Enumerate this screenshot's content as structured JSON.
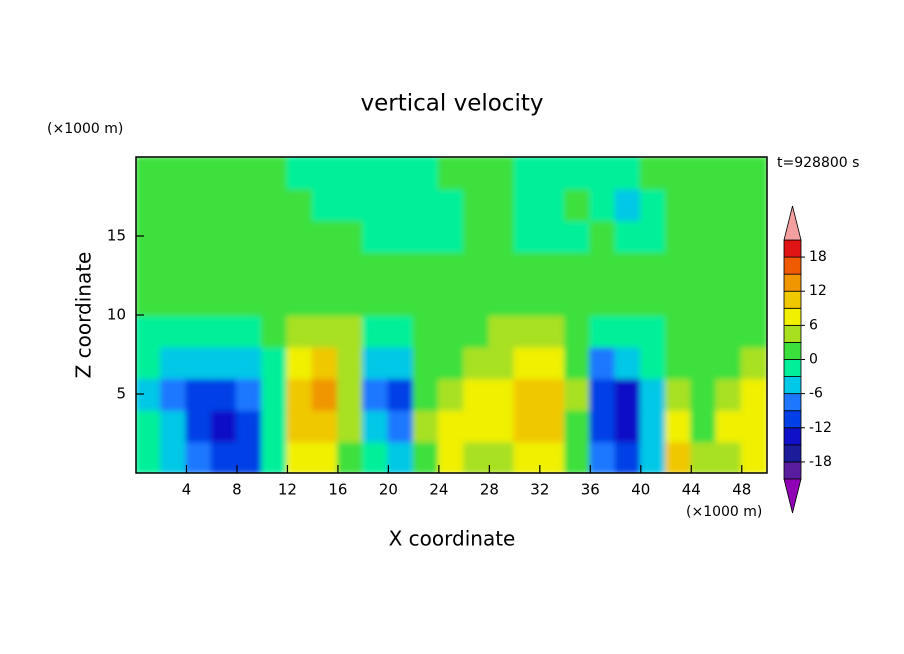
{
  "chart_data": {
    "type": "contour",
    "title": "vertical velocity",
    "x_label": "X coordinate",
    "y_label": "Z coordinate",
    "x_unit": "(×1000 m)",
    "y_unit": "(×1000 m)",
    "time_label": "t=928800 s",
    "xlim": [
      0,
      50
    ],
    "ylim": [
      0,
      20
    ],
    "xticks": [
      4,
      8,
      12,
      16,
      20,
      24,
      28,
      32,
      36,
      40,
      44,
      48
    ],
    "yticks": [
      5,
      10,
      15
    ],
    "x": [
      1,
      3,
      5,
      7,
      9,
      11,
      13,
      15,
      17,
      19,
      21,
      23,
      25,
      27,
      29,
      31,
      33,
      35,
      37,
      39,
      41,
      43,
      45,
      47,
      49
    ],
    "y": [
      1,
      3,
      5,
      7,
      9,
      11,
      13,
      15,
      17,
      19
    ],
    "z": [
      [
        -2,
        -4,
        -8,
        -12,
        -10,
        -2,
        8,
        8,
        2,
        -2,
        -4,
        1,
        7,
        5,
        4,
        8,
        7,
        1,
        -7,
        -10,
        -4,
        9,
        3,
        4,
        6
      ],
      [
        -3,
        -6,
        -11,
        -14,
        -12,
        -3,
        10,
        11,
        3,
        -5,
        -8,
        3,
        8,
        7,
        6,
        10,
        9,
        2,
        -10,
        -14,
        -6,
        7,
        2,
        6,
        7
      ],
      [
        -4,
        -7,
        -10,
        -11,
        -9,
        -2,
        11,
        12,
        4,
        -8,
        -11,
        1,
        5,
        6,
        7,
        11,
        9,
        3,
        -12,
        -13,
        -5,
        3,
        1,
        4,
        6
      ],
      [
        -3,
        -5,
        -5,
        -5,
        -6,
        -1,
        8,
        9,
        4,
        -4,
        -6,
        0,
        2,
        3,
        5,
        8,
        6,
        2,
        -7,
        -6,
        -3,
        0,
        1,
        2,
        3
      ],
      [
        -1,
        -2,
        -2,
        -1,
        -1,
        1,
        4,
        5,
        3,
        -1,
        -2,
        1,
        1,
        2,
        3,
        4,
        3,
        1,
        -3,
        -3,
        -2,
        1,
        1,
        0,
        1
      ],
      [
        1,
        1,
        0,
        0,
        1,
        2,
        2,
        2,
        1,
        1,
        0,
        1,
        2,
        2,
        2,
        2,
        2,
        1,
        0,
        0,
        1,
        1,
        2,
        1,
        1
      ],
      [
        1,
        1,
        1,
        2,
        1,
        1,
        1,
        2,
        1,
        1,
        1,
        1,
        1,
        1,
        0,
        0,
        1,
        1,
        1,
        1,
        1,
        2,
        1,
        1,
        1
      ],
      [
        1,
        1,
        1,
        1,
        1,
        1,
        1,
        1,
        1,
        -1,
        -1,
        -1,
        -1,
        1,
        1,
        -1,
        -1,
        -1,
        1,
        -1,
        -1,
        1,
        1,
        1,
        1
      ],
      [
        1,
        2,
        1,
        1,
        1,
        1,
        1,
        -1,
        -1,
        -1,
        -1,
        -1,
        -1,
        1,
        1,
        -1,
        -1,
        1,
        -1,
        -4,
        -1,
        1,
        1,
        1,
        1
      ],
      [
        1,
        1,
        1,
        1,
        1,
        1,
        -1,
        -1,
        -1,
        -1,
        -1,
        -1,
        1,
        1,
        1,
        -1,
        -1,
        -1,
        -1,
        -1,
        1,
        1,
        1,
        1,
        1
      ]
    ],
    "colorbar": {
      "levels": [
        -21,
        -18,
        -15,
        -12,
        -9,
        -6,
        -3,
        0,
        3,
        6,
        9,
        12,
        15,
        18,
        21
      ],
      "colors": [
        "#5a1da0",
        "#1c1c9a",
        "#1010c8",
        "#0040e6",
        "#1e78ff",
        "#00c8e6",
        "#00f09a",
        "#3ce03c",
        "#a8e020",
        "#f0f000",
        "#f0c800",
        "#f09600",
        "#f05a00",
        "#e01414"
      ],
      "under_color": "#9000b4",
      "over_color": "#f4a0a0",
      "ticks": [
        18,
        12,
        6,
        0,
        -6,
        -12,
        -18
      ]
    }
  }
}
